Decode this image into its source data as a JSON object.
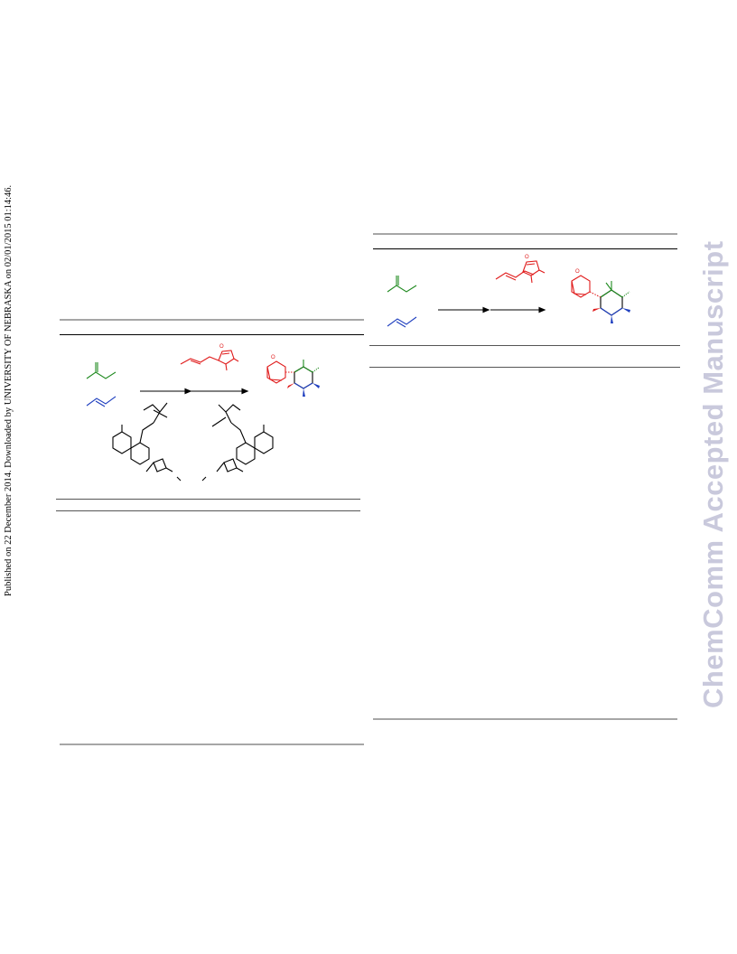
{
  "side_stamp": "Published on 22 December 2014. Downloaded by UNIVERSITY OF NEBRASKA on 02/01/2015 01:14:46.",
  "watermark": "ChemComm Accepted Manuscript",
  "colors": {
    "green": "#1f8a1f",
    "blue": "#1f3fbf",
    "red": "#e01b1b",
    "rule_grey": "#a6a6a6",
    "watermark": "#c9c9dc"
  }
}
